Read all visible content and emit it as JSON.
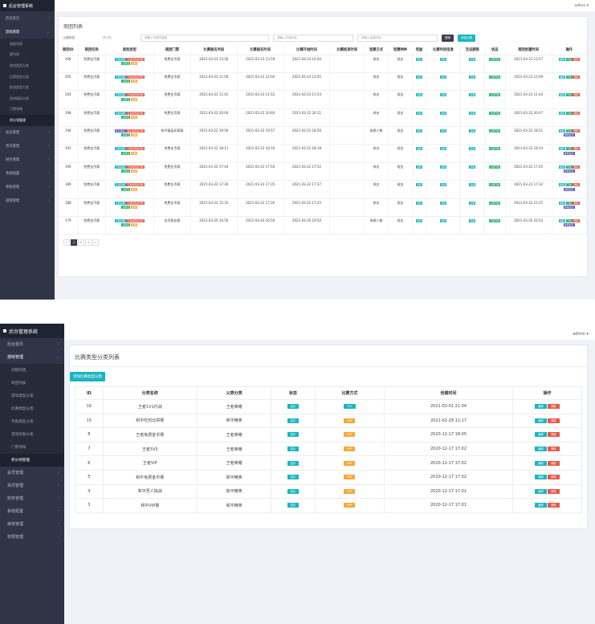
{
  "app_title": "后台管理系统",
  "admin_label": "admin",
  "shot1": {
    "menu": [
      {
        "label": "后台首页"
      },
      {
        "label": "游戏管理",
        "open": true,
        "children": [
          "链接列表",
          "赛列表",
          "游戏类型分类",
          "比赛类型分类",
          "鲜游类型分类",
          "游戏展标分类",
          "门票领域",
          "积分领管理"
        ],
        "active_index": 7
      },
      {
        "label": "会员管理"
      },
      {
        "label": "资讯管理"
      },
      {
        "label": "财务管理"
      },
      {
        "label": "系统配置"
      },
      {
        "label": "审核管理"
      },
      {
        "label": "权限管理"
      }
    ],
    "panel_title": "商团列表",
    "filters": {
      "label1": "比赛类型",
      "value1": "男产品",
      "placeholder2": "请输入关键字搜索",
      "placeholder3": "请输入开始时间",
      "placeholder4": "请输入结束时间",
      "search": "搜索",
      "add": "添加比赛"
    },
    "columns": [
      "商团ID",
      "商团名称",
      "类别类型",
      "商团门票",
      "比赛报名时间",
      "比赛报名时间",
      "比赛开始时间",
      "比赛结束时间",
      "竞赛方式",
      "竞猜种种",
      "奖励",
      "比赛时间信息",
      "活设期限",
      "状态",
      "商团创建时间",
      "操作"
    ],
    "rows": [
      {
        "id": "206",
        "name": "免费金币赛",
        "ticket": "免费金币赛",
        "t1": "2021-03-23 13:56",
        "t2": "2021-03-23 13:59",
        "t3": "2021-03-23 14:00",
        "t4": "",
        "mode": "排名",
        "type": "现金",
        "status": "比赛开始",
        "created": "2021-03-23 13:57",
        "three_ops": false
      },
      {
        "id": "205",
        "name": "免费金币赛",
        "ticket": "免费金币赛",
        "t1": "2021-03-23 11:58",
        "t2": "2021-03-23 12:04",
        "t3": "2021-03-23 12:05",
        "t4": "",
        "mode": "排名",
        "type": "现金",
        "status": "比赛开始",
        "created": "2021-03-23 12:09",
        "three_ops": false
      },
      {
        "id": "204",
        "name": "免费金币赛",
        "ticket": "免费金币赛",
        "t1": "2021-03-23 11:41",
        "t2": "2021-03-23 11:52",
        "t3": "2021-03-23 11:54",
        "t4": "",
        "mode": "排名",
        "type": "现金",
        "status": "比赛开始",
        "created": "2021-03-23 11:44",
        "three_ops": false
      },
      {
        "id": "198",
        "name": "免费金币赛",
        "ticket": "免费金币赛",
        "t1": "2021-03-22 20:04",
        "t2": "2021-03-22 20:60",
        "t3": "2021-03-22 20:11",
        "t4": "",
        "mode": "排名",
        "type": "现金",
        "status": "比赛开始",
        "created": "2021-03-22 20:07",
        "three_ops": false
      },
      {
        "id": "194",
        "name": "免费金币赛",
        "ticket": "和平精英初赛赛",
        "t1": "2021-03-22 19:56",
        "t2": "2021-03-22 19:57",
        "t3": "2021-03-22 18:56",
        "t4": "",
        "mode": "参赛人数",
        "type": "现金",
        "status": "比赛开始",
        "created": "2021-03-22 18:51",
        "three_ops": true
      },
      {
        "id": "191",
        "name": "免费金币赛",
        "ticket": "免费金币赛",
        "t1": "2021-03-22 18:11",
        "t2": "2021-03-22 18:10",
        "t3": "2021-03-22 18:18",
        "t4": "",
        "mode": "排名",
        "type": "现金",
        "status": "比赛开始",
        "created": "2021-03-22 18:14",
        "three_ops": true
      },
      {
        "id": "190",
        "name": "免费金币赛",
        "ticket": "免费金币赛",
        "t1": "2021-03-22 17:44",
        "t2": "2021-03-22 17:50",
        "t3": "2021-03-22 17:52",
        "t4": "",
        "mode": "排名",
        "type": "现金",
        "status": "比赛开始",
        "created": "2021-03-22 17:45",
        "three_ops": true
      },
      {
        "id": "189",
        "name": "免费金币赛",
        "ticket": "免费金币赛",
        "t1": "2021-03-22 17:26",
        "t2": "2021-03-22 17:35",
        "t3": "2021-03-22 17:37",
        "t4": "",
        "mode": "排名",
        "type": "现金",
        "status": "比赛开始",
        "created": "2021-03-22 17:32",
        "three_ops": true
      },
      {
        "id": "188",
        "name": "免费金币赛",
        "ticket": "免费金币赛",
        "t1": "2021-03-22 15:35",
        "t2": "2021-03-22 17:20",
        "t3": "2021-03-22 17:22",
        "t4": "",
        "mode": "排名",
        "type": "现金",
        "status": "比赛开始",
        "created": "2021-03-22 15:37",
        "three_ops": true
      },
      {
        "id": "179",
        "name": "免费金币赛",
        "ticket": "金币赛金赛",
        "t1": "2021-03-20 10:50",
        "t2": "2021-03-20 16:50",
        "t3": "2021-03-20 19:50",
        "t4": "",
        "mode": "参赛人数",
        "type": "现金",
        "status": "比赛开始",
        "created": "2021-03-20 10:52",
        "three_ops": true
      }
    ],
    "tags": {
      "a": "王者荣耀",
      "b": "王者免费金币赛",
      "c": "竞猜五",
      "d": "竞猜",
      "e": "和平精英",
      "f": "和平免费金币赛",
      "g": "查看"
    },
    "ops": {
      "edit": "编辑",
      "del": "删除",
      "off": "下架",
      "join": "参赛会员"
    },
    "pages": [
      "«",
      "1",
      "2",
      "3",
      "»"
    ]
  },
  "shot2": {
    "menu": [
      {
        "label": "后台首页"
      },
      {
        "label": "游戏管理",
        "open": true,
        "children": [
          "创建商团",
          "商团列表",
          "游戏类型分类",
          "比赛类型分类",
          "奖励类型分类",
          "游戏奖励分类",
          "门票领域",
          "积分领管理"
        ],
        "active_index": 7
      },
      {
        "label": "会员管理"
      },
      {
        "label": "资讯管理"
      },
      {
        "label": "财务管理"
      },
      {
        "label": "系统配置"
      },
      {
        "label": "审核管理"
      },
      {
        "label": "权限管理"
      }
    ],
    "panel_title": "比赛类型分类列表",
    "add_button": "添加比赛类型分类",
    "columns": [
      "ID",
      "分类名称",
      "父类分类",
      "状态",
      "比赛方式",
      "创建时间",
      "操作"
    ],
    "rows": [
      {
        "id": "16",
        "name": "王者1V1约战",
        "parent": "王者荣耀",
        "status": "显示",
        "mode": "1V1",
        "mode_color": "teal",
        "created": "2021-03-01 21:04"
      },
      {
        "id": "15",
        "name": "和平吃鸡比拼赛",
        "parent": "和平精英",
        "status": "显示",
        "mode": "PVP",
        "mode_color": "orange",
        "created": "2021-02-28 11:17"
      },
      {
        "id": "8",
        "name": "王者免费金币赛",
        "parent": "王者荣耀",
        "status": "显示",
        "mode": "PVP",
        "mode_color": "orange",
        "created": "2020-12-17 18:05"
      },
      {
        "id": "7",
        "name": "王者5V5",
        "parent": "王者荣耀",
        "status": "显示",
        "mode": "PVP",
        "mode_color": "orange",
        "created": "2020-12-17 17:02"
      },
      {
        "id": "6",
        "name": "王者VIP",
        "parent": "王者荣耀",
        "status": "显示",
        "mode": "PVP",
        "mode_color": "orange",
        "created": "2020-12-17 17:02"
      },
      {
        "id": "5",
        "name": "和平免费金币赛",
        "parent": "和平精英",
        "status": "显示",
        "mode": "PVP",
        "mode_color": "orange",
        "created": "2020-12-17 17:02"
      },
      {
        "id": "4",
        "name": "和平吾人挑战",
        "parent": "和平精英",
        "status": "显示",
        "mode": "PVP",
        "mode_color": "orange",
        "created": "2020-12-17 17:01"
      },
      {
        "id": "3",
        "name": "和平VIP赛",
        "parent": "和平精英",
        "status": "显示",
        "mode": "PVP",
        "mode_color": "orange",
        "created": "2020-12-17 17:01"
      }
    ],
    "ops": {
      "edit": "编辑",
      "del": "删除"
    }
  }
}
